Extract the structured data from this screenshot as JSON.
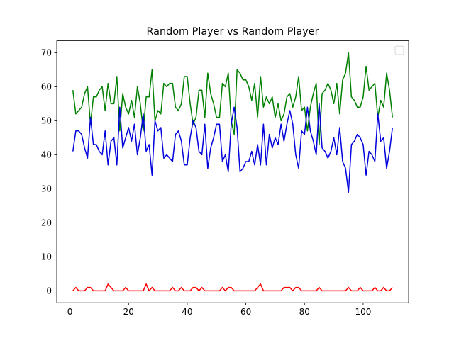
{
  "chart_data": {
    "type": "line",
    "title": "Random Player vs Random Player",
    "xlabel": "",
    "ylabel": "",
    "xlim": [
      -4.5,
      115.5
    ],
    "ylim": [
      -3.5,
      73.5
    ],
    "xticks": [
      0,
      20,
      40,
      60,
      80,
      100
    ],
    "yticks": [
      0,
      10,
      20,
      30,
      40,
      50,
      60,
      70
    ],
    "grid": false,
    "legend": {
      "placement": "top-right",
      "entries": []
    },
    "x": [
      1,
      2,
      3,
      4,
      5,
      6,
      7,
      8,
      9,
      10,
      11,
      12,
      13,
      14,
      15,
      16,
      17,
      18,
      19,
      20,
      21,
      22,
      23,
      24,
      25,
      26,
      27,
      28,
      29,
      30,
      31,
      32,
      33,
      34,
      35,
      36,
      37,
      38,
      39,
      40,
      41,
      42,
      43,
      44,
      45,
      46,
      47,
      48,
      49,
      50,
      51,
      52,
      53,
      54,
      55,
      56,
      57,
      58,
      59,
      60,
      61,
      62,
      63,
      64,
      65,
      66,
      67,
      68,
      69,
      70,
      71,
      72,
      73,
      74,
      75,
      76,
      77,
      78,
      79,
      80,
      81,
      82,
      83,
      84,
      85,
      86,
      87,
      88,
      89,
      90,
      91,
      92,
      93,
      94,
      95,
      96,
      97,
      98,
      99,
      100,
      101,
      102,
      103,
      104,
      105,
      106,
      107,
      108,
      109,
      110
    ],
    "series": [
      {
        "color": "#008000",
        "values": [
          59,
          52,
          53,
          54,
          58,
          60,
          49,
          57,
          57,
          59,
          60,
          53,
          61,
          55,
          55,
          63,
          47,
          58,
          54,
          52,
          56,
          51,
          60,
          55,
          47,
          57,
          57,
          65,
          50,
          53,
          52,
          61,
          60,
          61,
          61,
          54,
          53,
          55,
          63,
          63,
          55,
          49,
          51,
          59,
          59,
          51,
          64,
          58,
          55,
          51,
          51,
          61,
          60,
          64,
          50,
          46,
          65,
          64,
          62,
          62,
          60,
          56,
          61,
          51,
          63,
          54,
          57,
          55,
          57,
          51,
          55,
          50,
          52,
          57,
          58,
          54,
          57,
          63,
          53,
          54,
          47,
          54,
          58,
          61,
          43,
          58,
          59,
          61,
          59,
          55,
          61,
          52,
          62,
          64,
          70,
          57,
          56,
          54,
          54,
          57,
          66,
          59,
          60,
          61,
          51,
          56,
          54,
          64,
          59,
          51
        ]
      },
      {
        "color": "#0000dd",
        "values": [
          41,
          47,
          47,
          46,
          42,
          39,
          51,
          43,
          43,
          41,
          40,
          47,
          37,
          44,
          45,
          37,
          54,
          42,
          45,
          48,
          44,
          49,
          40,
          45,
          52,
          41,
          43,
          34,
          50,
          47,
          48,
          39,
          40,
          39,
          38,
          46,
          47,
          44,
          37,
          37,
          45,
          50,
          48,
          41,
          40,
          49,
          36,
          42,
          45,
          49,
          49,
          38,
          40,
          35,
          49,
          54,
          48,
          35,
          36,
          38,
          38,
          41,
          37,
          43,
          37,
          49,
          37,
          46,
          42,
          45,
          43,
          49,
          44,
          49,
          53,
          49,
          40,
          36,
          47,
          46,
          54,
          47,
          44,
          40,
          55,
          42,
          41,
          39,
          41,
          45,
          40,
          48,
          38,
          36,
          29,
          43,
          44,
          46,
          45,
          43,
          34,
          41,
          40,
          38,
          52,
          44,
          45,
          36,
          41,
          48
        ]
      },
      {
        "color": "#ff0000",
        "values": [
          0,
          1,
          0,
          0,
          0,
          1,
          1,
          0,
          0,
          0,
          0,
          0,
          2,
          1,
          0,
          0,
          0,
          0,
          1,
          0,
          0,
          0,
          0,
          0,
          0,
          2,
          0,
          1,
          0,
          0,
          0,
          0,
          0,
          0,
          1,
          0,
          0,
          1,
          0,
          0,
          0,
          1,
          1,
          0,
          1,
          0,
          0,
          0,
          0,
          0,
          0,
          1,
          0,
          1,
          1,
          0,
          0,
          0,
          0,
          0,
          0,
          0,
          0,
          1,
          2,
          0,
          0,
          0,
          0,
          0,
          0,
          0,
          1,
          1,
          1,
          0,
          1,
          1,
          0,
          0,
          0,
          0,
          0,
          0,
          1,
          0,
          0,
          0,
          0,
          0,
          0,
          0,
          0,
          0,
          1,
          0,
          0,
          0,
          1,
          0,
          0,
          0,
          0,
          1,
          0,
          0,
          1,
          0,
          0,
          1
        ]
      }
    ]
  }
}
